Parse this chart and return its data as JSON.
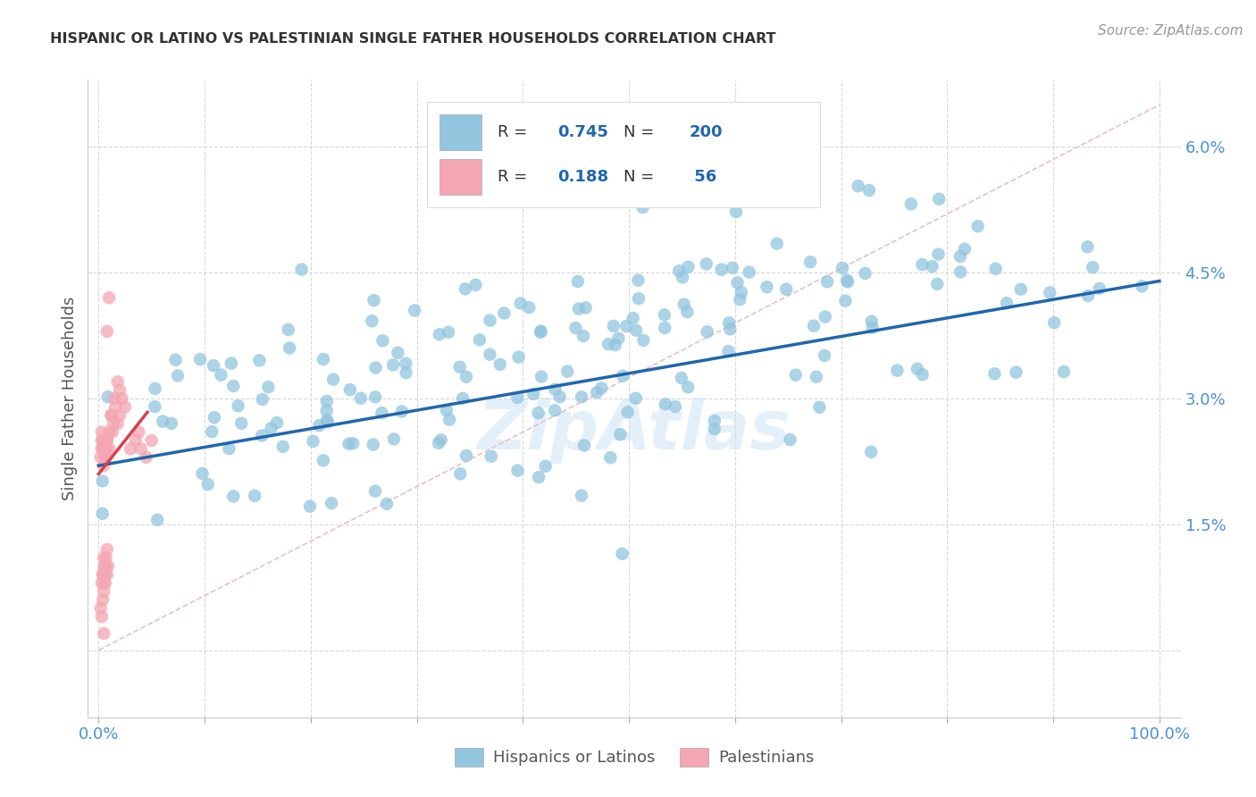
{
  "title": "HISPANIC OR LATINO VS PALESTINIAN SINGLE FATHER HOUSEHOLDS CORRELATION CHART",
  "source": "Source: ZipAtlas.com",
  "ylabel_label": "Single Father Households",
  "R_hispanic": 0.745,
  "N_hispanic": 200,
  "R_palestinian": 0.188,
  "N_palestinian": 56,
  "blue_color": "#92c5de",
  "pink_color": "#f4a6b2",
  "trend_blue": "#2166ac",
  "trend_pink": "#d6404e",
  "watermark": "ZipAtlas",
  "legend_label_hispanic": "Hispanics or Latinos",
  "legend_label_palestinian": "Palestinians",
  "xlim": [
    -0.01,
    1.02
  ],
  "ylim": [
    -0.008,
    0.068
  ],
  "y_tick_vals": [
    0.0,
    0.015,
    0.03,
    0.045,
    0.06
  ],
  "y_tick_labels": [
    "",
    "1.5%",
    "3.0%",
    "4.5%",
    "6.0%"
  ],
  "x_minor_ticks": [
    0.0,
    0.1,
    0.2,
    0.3,
    0.4,
    0.5,
    0.6,
    0.7,
    0.8,
    0.9,
    1.0
  ],
  "grid_color": "#d8d8d8",
  "title_fontsize": 11.5,
  "tick_label_color": "#4a90d9",
  "axis_label_color": "#555555"
}
